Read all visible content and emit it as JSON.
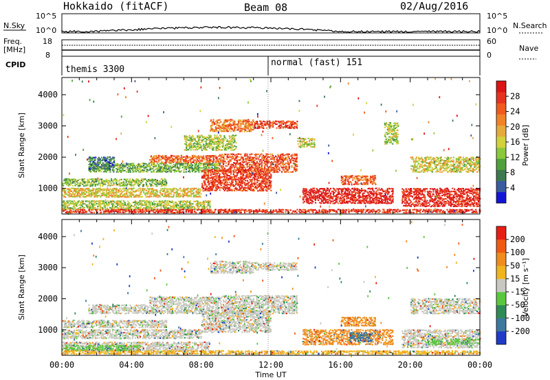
{
  "header": {
    "radar": "Hokkaido (fitACF)",
    "beam": "Beam 08",
    "date": "02/Aug/2016"
  },
  "top_panels": {
    "nsky_label": "N.Sky",
    "nsearch_label": "N.Search",
    "noise_ticks": [
      "10^5",
      "10^0"
    ],
    "freq_label_1": "Freq.",
    "freq_label_2": "[MHz]",
    "freq_ticks": [
      "18",
      "8"
    ],
    "nave_ticks": [
      "60",
      "0"
    ],
    "nave_label": "Nave",
    "cpid_label": "CPID",
    "cpid_modes": [
      "themis 3300",
      "normal (fast) 151"
    ]
  },
  "chart_data": [
    {
      "type": "heatmap",
      "panel": "power",
      "ylabel": "Slant Range [km]",
      "xlabel": "",
      "x_ticks": [
        "00:00",
        "04:00",
        "08:00",
        "12:00",
        "16:00",
        "20:00",
        "00:00"
      ],
      "y_ticks": [
        "1000",
        "2000",
        "3000",
        "4000"
      ],
      "ylim": [
        180,
        4550
      ],
      "xlim_hours": [
        0,
        24
      ],
      "colorbar": {
        "label": "Power [dB]",
        "ticks": [
          "4",
          "8",
          "12",
          "16",
          "20",
          "24",
          "28"
        ],
        "colors": [
          "#1414d8",
          "#3c5aa0",
          "#3c7850",
          "#50a03c",
          "#8cc83c",
          "#d2d23c",
          "#e6aa3c",
          "#f08228",
          "#f05a1e",
          "#e6321e",
          "#dc1414"
        ]
      },
      "regions": [
        {
          "t0": 0.0,
          "t1": 8.5,
          "r0": 300,
          "r1": 600,
          "level": 0.45
        },
        {
          "t0": 0.0,
          "t1": 8.0,
          "r0": 700,
          "r1": 1000,
          "level": 0.55
        },
        {
          "t0": 0.0,
          "t1": 6.0,
          "r0": 1050,
          "r1": 1300,
          "level": 0.4
        },
        {
          "t0": 1.5,
          "t1": 9.0,
          "r0": 1500,
          "r1": 1800,
          "level": 0.35
        },
        {
          "t0": 5.0,
          "t1": 9.0,
          "r0": 1800,
          "r1": 2050,
          "level": 0.75
        },
        {
          "t0": 8.0,
          "t1": 12.0,
          "r0": 900,
          "r1": 1600,
          "level": 0.85
        },
        {
          "t0": 9.0,
          "t1": 13.5,
          "r0": 1500,
          "r1": 2100,
          "level": 0.8
        },
        {
          "t0": 8.5,
          "t1": 11.0,
          "r0": 2800,
          "r1": 3200,
          "level": 0.7
        },
        {
          "t0": 11.0,
          "t1": 13.5,
          "r0": 2900,
          "r1": 3150,
          "level": 0.85
        },
        {
          "t0": 7.0,
          "t1": 10.0,
          "r0": 2200,
          "r1": 2700,
          "level": 0.45
        },
        {
          "t0": 13.8,
          "t1": 19.0,
          "r0": 500,
          "r1": 1000,
          "level": 0.95
        },
        {
          "t0": 16.0,
          "t1": 18.0,
          "r0": 1100,
          "r1": 1400,
          "level": 0.75
        },
        {
          "t0": 19.5,
          "t1": 24.0,
          "r0": 400,
          "r1": 1000,
          "level": 0.92
        },
        {
          "t0": 20.0,
          "t1": 24.0,
          "r0": 1500,
          "r1": 2000,
          "level": 0.5
        },
        {
          "t0": 0.0,
          "t1": 24.0,
          "r0": 200,
          "r1": 320,
          "level": 0.88
        },
        {
          "t0": 18.5,
          "t1": 19.3,
          "r0": 2400,
          "r1": 3100,
          "level": 0.45
        },
        {
          "t0": 1.5,
          "t1": 3.0,
          "r0": 1600,
          "r1": 2000,
          "level": 0.2
        },
        {
          "t0": 13.5,
          "t1": 14.5,
          "r0": 2300,
          "r1": 2600,
          "level": 0.5
        }
      ]
    },
    {
      "type": "heatmap",
      "panel": "velocity",
      "ylabel": "Slant Range [km]",
      "xlabel": "Time UT",
      "x_ticks": [
        "00:00",
        "04:00",
        "08:00",
        "12:00",
        "16:00",
        "20:00",
        "00:00"
      ],
      "y_ticks": [
        "1000",
        "2000",
        "3000",
        "4000"
      ],
      "ylim": [
        180,
        4550
      ],
      "xlim_hours": [
        0,
        24
      ],
      "colorbar": {
        "label": "Velocity [m s⁻¹]",
        "ticks": [
          "200",
          "100",
          "50",
          "15",
          "-15",
          "-50",
          "-100",
          "-200"
        ],
        "colors": [
          "#1e3cc8",
          "#3c78a0",
          "#2e8b57",
          "#5ac83c",
          "#c8c8c0",
          "#f0b41e",
          "#f08c1e",
          "#f05a14",
          "#e61e14"
        ]
      },
      "regions": [
        {
          "t0": 0.0,
          "t1": 8.5,
          "r0": 300,
          "r1": 600,
          "level": 0.55
        },
        {
          "t0": 0.0,
          "t1": 8.0,
          "r0": 700,
          "r1": 1000,
          "level": 0.45
        },
        {
          "t0": 0.0,
          "t1": 6.0,
          "r0": 1050,
          "r1": 1300,
          "level": 0.45
        },
        {
          "t0": 1.5,
          "t1": 9.0,
          "r0": 1500,
          "r1": 1800,
          "level": 0.45
        },
        {
          "t0": 5.0,
          "t1": 9.0,
          "r0": 1800,
          "r1": 2050,
          "level": 0.45
        },
        {
          "t0": 8.0,
          "t1": 12.0,
          "r0": 900,
          "r1": 1600,
          "level": 0.45
        },
        {
          "t0": 9.0,
          "t1": 13.5,
          "r0": 1500,
          "r1": 2100,
          "level": 0.45
        },
        {
          "t0": 8.5,
          "t1": 11.0,
          "r0": 2800,
          "r1": 3200,
          "level": 0.5
        },
        {
          "t0": 11.0,
          "t1": 13.5,
          "r0": 2900,
          "r1": 3150,
          "level": 0.45
        },
        {
          "t0": 13.8,
          "t1": 19.0,
          "r0": 500,
          "r1": 1000,
          "level": 0.7
        },
        {
          "t0": 16.0,
          "t1": 18.0,
          "r0": 1100,
          "r1": 1400,
          "level": 0.7
        },
        {
          "t0": 16.5,
          "t1": 17.8,
          "r0": 600,
          "r1": 900,
          "level": 0.2
        },
        {
          "t0": 19.5,
          "t1": 24.0,
          "r0": 400,
          "r1": 1000,
          "level": 0.45
        },
        {
          "t0": 20.0,
          "t1": 24.0,
          "r0": 1500,
          "r1": 2000,
          "level": 0.45
        },
        {
          "t0": 0.0,
          "t1": 24.0,
          "r0": 200,
          "r1": 320,
          "level": 0.62
        },
        {
          "t0": 0.0,
          "t1": 4.5,
          "r0": 320,
          "r1": 500,
          "level": 0.35
        },
        {
          "t0": 21.0,
          "t1": 24.0,
          "r0": 500,
          "r1": 700,
          "level": 0.35
        }
      ]
    }
  ]
}
